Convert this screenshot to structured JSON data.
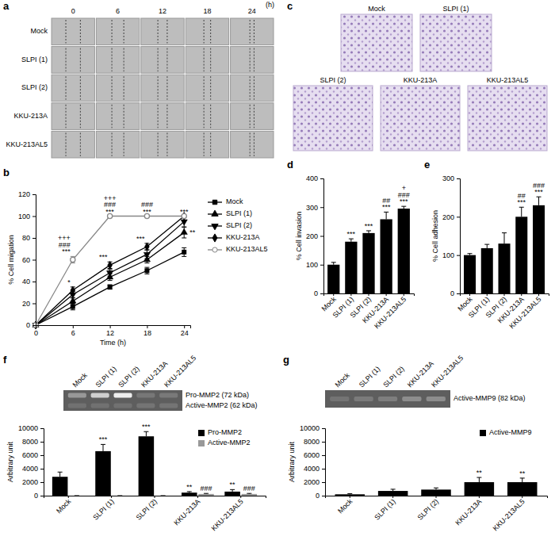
{
  "chart_data": [
    {
      "panel": "a",
      "type": "image_grid",
      "rows": [
        "Mock",
        "SLPI (1)",
        "SLPI (2)",
        "KKU-213A",
        "KKU-213AL5"
      ],
      "columns": [
        0,
        6,
        12,
        18,
        24
      ],
      "column_unit": "(h)"
    },
    {
      "panel": "b",
      "type": "line",
      "x": [
        0,
        6,
        12,
        18,
        24
      ],
      "xlim": [
        0,
        25
      ],
      "xticks": [
        0,
        6,
        12,
        18,
        24
      ],
      "ylim": [
        0,
        120
      ],
      "yticks": [
        0,
        20,
        40,
        60,
        80,
        100,
        120
      ],
      "x_label": "Time (h)",
      "y_label": "% Cell migation",
      "legend": "right",
      "series": [
        {
          "name": "Mock",
          "color": "#000000",
          "marker": "square",
          "values": [
            0,
            17,
            35,
            50,
            67
          ],
          "errors": [
            0,
            3,
            2,
            3,
            4
          ],
          "significance": [
            null,
            null,
            null,
            null,
            null
          ]
        },
        {
          "name": "SLPI (1)",
          "color": "#000000",
          "marker": "triangle",
          "values": [
            0,
            22,
            44,
            60,
            85
          ],
          "errors": [
            0,
            3,
            3,
            3,
            5
          ],
          "significance": [
            null,
            null,
            null,
            null,
            [
              "**"
            ]
          ]
        },
        {
          "name": "SLPI (2)",
          "color": "#000000",
          "marker": "triangle-down",
          "values": [
            0,
            28,
            48,
            65,
            95
          ],
          "errors": [
            0,
            3,
            3,
            4,
            5
          ],
          "significance": [
            null,
            null,
            null,
            null,
            null
          ]
        },
        {
          "name": "KKU-213A",
          "color": "#000000",
          "marker": "diamond",
          "values": [
            0,
            32,
            55,
            72,
            100
          ],
          "errors": [
            0,
            3,
            3,
            3,
            0
          ],
          "significance": [
            null,
            [
              "*"
            ],
            [
              "***"
            ],
            [
              "***"
            ],
            [
              "***"
            ]
          ]
        },
        {
          "name": "KKU-213AL5",
          "color": "#888888",
          "marker": "circle-open",
          "values": [
            0,
            60,
            100,
            100,
            100
          ],
          "errors": [
            0,
            3,
            0,
            0,
            0
          ],
          "significance": [
            null,
            [
              "+++",
              "###",
              "***"
            ],
            [
              "+++",
              "###",
              "***"
            ],
            [
              "###",
              "***"
            ],
            null
          ]
        }
      ]
    },
    {
      "panel": "c",
      "type": "image_panel",
      "labels": [
        "Mock",
        "SLPI (1)",
        "SLPI (2)",
        "KKU-213A",
        "KKU-213AL5"
      ]
    },
    {
      "panel": "d",
      "type": "bar",
      "categories": [
        "Mock",
        "SLPI (1)",
        "SLPI (2)",
        "KKU-213A",
        "KKU-213AL5"
      ],
      "values": [
        100,
        180,
        210,
        258,
        295
      ],
      "errors": [
        8,
        10,
        8,
        25,
        8
      ],
      "significance": [
        null,
        [
          "***"
        ],
        [
          "***"
        ],
        [
          "##",
          "***"
        ],
        [
          "+",
          "###",
          "***"
        ]
      ],
      "color": "#000000",
      "ylim": [
        0,
        400
      ],
      "yticks": [
        0,
        100,
        200,
        300,
        400
      ],
      "y_label": "% Cell invasion"
    },
    {
      "panel": "e",
      "type": "bar",
      "categories": [
        "Mock",
        "SLPI (1)",
        "SLPI (2)",
        "KKU-213A",
        "KKU-213AL5"
      ],
      "values": [
        100,
        118,
        130,
        200,
        230
      ],
      "errors": [
        4,
        10,
        28,
        25,
        22
      ],
      "significance": [
        null,
        null,
        null,
        [
          "##",
          "***"
        ],
        [
          "###",
          "***"
        ]
      ],
      "color": "#000000",
      "ylim": [
        0,
        300
      ],
      "yticks": [
        0,
        100,
        200,
        300
      ],
      "y_label": "% Cell adhesion"
    },
    {
      "panel": "f",
      "type": "bar",
      "categories": [
        "Mock",
        "SLPI (1)",
        "SLPI (2)",
        "KKU-213A",
        "KKU-213AL5"
      ],
      "ylim": [
        0,
        10000
      ],
      "yticks": [
        0,
        2000,
        4000,
        6000,
        8000,
        10000
      ],
      "y_label": "Arbitrary unit",
      "legend": "top-right",
      "series": [
        {
          "name": "Pro-MMP2",
          "color": "#000000",
          "values": [
            2800,
            6600,
            8800,
            450,
            600
          ],
          "errors": [
            700,
            1000,
            700,
            150,
            300
          ],
          "significance": [
            null,
            [
              "***"
            ],
            [
              "***"
            ],
            [
              "**"
            ],
            [
              "**"
            ]
          ]
        },
        {
          "name": "Active-MMP2",
          "color": "#999999",
          "values": [
            0,
            0,
            0,
            250,
            250
          ],
          "errors": [
            0,
            0,
            0,
            80,
            80
          ],
          "significance": [
            null,
            null,
            null,
            [
              "###"
            ],
            [
              "###"
            ]
          ]
        }
      ],
      "gel": {
        "lanes": [
          "Mock",
          "SLPI (1)",
          "SLPI (2)",
          "KKU-213A",
          "KKU-213AL5"
        ],
        "band_labels": [
          "Pro-MMP2 (72 kDa)",
          "Active-MMP2 (62 kDa)"
        ]
      }
    },
    {
      "panel": "g",
      "type": "bar",
      "categories": [
        "Mock",
        "SLPI (1)",
        "SLPI (2)",
        "KKU-213A",
        "KKU-213AL5"
      ],
      "ylim": [
        0,
        10000
      ],
      "yticks": [
        0,
        2000,
        4000,
        6000,
        8000,
        10000
      ],
      "y_label": "Arbitrary unit",
      "legend": "top-right",
      "series": [
        {
          "name": "Active-MMP9",
          "color": "#000000",
          "values": [
            200,
            700,
            900,
            2000,
            2000
          ],
          "errors": [
            100,
            250,
            250,
            700,
            600
          ],
          "significance": [
            null,
            null,
            null,
            [
              "**"
            ],
            [
              "**"
            ]
          ]
        }
      ],
      "gel": {
        "lanes": [
          "Mock",
          "SLPI (1)",
          "SLPI (2)",
          "KKU-213A",
          "KKU-213AL5"
        ],
        "band_labels": [
          "Active-MMP9 (82 kDa)"
        ]
      }
    }
  ]
}
